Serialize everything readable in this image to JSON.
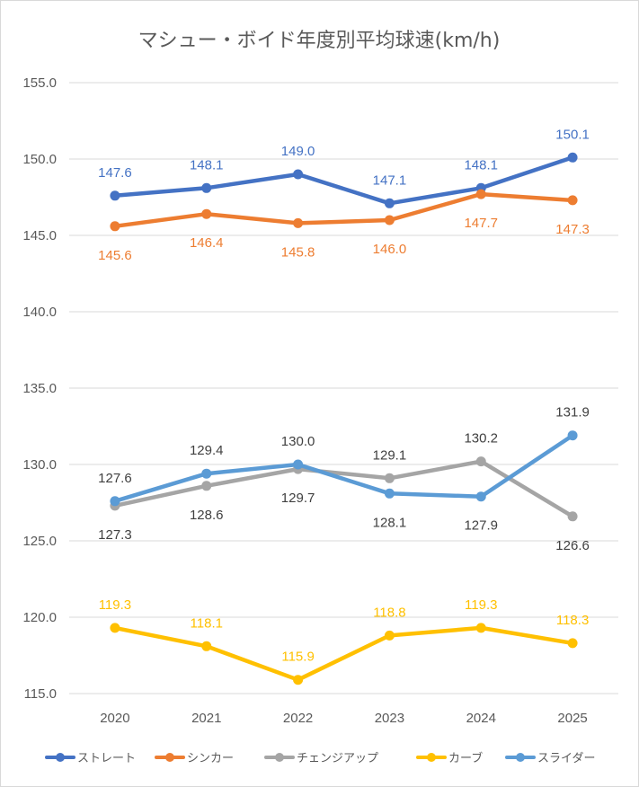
{
  "chart_data": {
    "type": "line",
    "title": "マシュー・ボイド年度別平均球速(km/h)",
    "xlabel": "",
    "ylabel": "",
    "categories": [
      "2020",
      "2021",
      "2022",
      "2023",
      "2024",
      "2025"
    ],
    "ylim": [
      115.0,
      155.0
    ],
    "yticks": [
      "155.0",
      "150.0",
      "145.0",
      "140.0",
      "135.0",
      "130.0",
      "125.0",
      "120.0",
      "115.0"
    ],
    "grid": true,
    "legend_position": "bottom",
    "series": [
      {
        "name": "ストレート",
        "color": "#4472c4",
        "values": [
          147.6,
          148.1,
          149.0,
          147.1,
          148.1,
          150.1
        ],
        "labels": [
          "147.6",
          "148.1",
          "149.0",
          "147.1",
          "148.1",
          "150.1"
        ],
        "label_pos": [
          "above",
          "above",
          "above",
          "above",
          "above",
          "above"
        ]
      },
      {
        "name": "シンカー",
        "color": "#ed7d31",
        "values": [
          145.6,
          146.4,
          145.8,
          146.0,
          147.7,
          147.3
        ],
        "labels": [
          "145.6",
          "146.4",
          "145.8",
          "146.0",
          "147.7",
          "147.3"
        ],
        "label_pos": [
          "below",
          "below",
          "below",
          "below",
          "below",
          "below"
        ]
      },
      {
        "name": "チェンジアップ",
        "color": "#a5a5a5",
        "values": [
          127.3,
          128.6,
          129.7,
          129.1,
          130.2,
          126.6
        ],
        "labels": [
          "127.3",
          "128.6",
          "129.7",
          "129.1",
          "130.2",
          "126.6"
        ],
        "label_pos": [
          "below",
          "below",
          "below",
          "above",
          "above",
          "below"
        ]
      },
      {
        "name": "カーブ",
        "color": "#ffc000",
        "values": [
          119.3,
          118.1,
          115.9,
          118.8,
          119.3,
          118.3
        ],
        "labels": [
          "119.3",
          "118.1",
          "115.9",
          "118.8",
          "119.3",
          "118.3"
        ],
        "label_pos": [
          "above",
          "above",
          "above",
          "above",
          "above",
          "above"
        ]
      },
      {
        "name": "スライダー",
        "color": "#5b9bd5",
        "values": [
          127.6,
          129.4,
          130.0,
          128.1,
          127.9,
          131.9
        ],
        "labels": [
          "127.6",
          "129.4",
          "130.0",
          "128.1",
          "127.9",
          "131.9"
        ],
        "label_pos": [
          "above",
          "above",
          "above",
          "below",
          "below",
          "above"
        ]
      }
    ],
    "label_text_colors": {
      "ストレート": "#4472c4",
      "シンカー": "#ed7d31",
      "チェンジアップ": "#404040",
      "カーブ": "#ffc000",
      "スライダー": "#404040"
    }
  }
}
